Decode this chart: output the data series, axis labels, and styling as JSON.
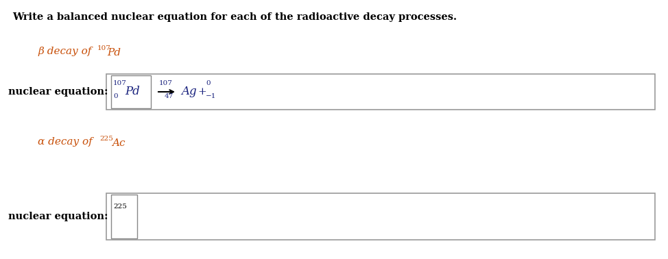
{
  "bg_color": "#ffffff",
  "text_color": "#000000",
  "orange_color": "#c8500a",
  "blue_color": "#1a237e",
  "title": "Write a balanced nuclear equation for each of the radioactive decay processes.",
  "title_fontsize": 10.5,
  "beta_decay_text": "β decay of ",
  "alpha_decay_text": "α decay of ",
  "nuclear_eq_label": "nuclear equation:",
  "nuclear_label_fontsize": 10.5,
  "box_edge_color": "#999999",
  "inner_box_edge_color": "#888888"
}
